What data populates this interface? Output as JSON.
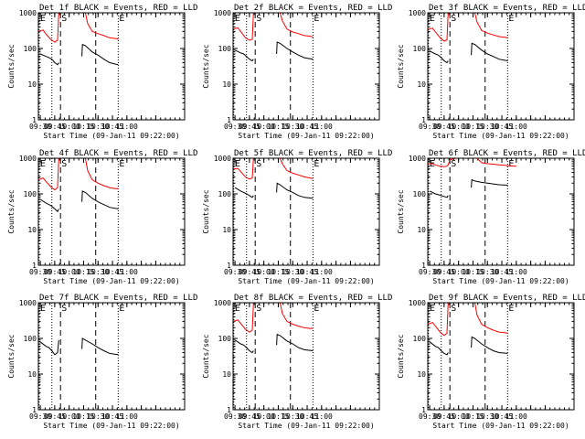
{
  "colors": {
    "background": "#ffffff",
    "events": "#000000",
    "lld": "#ff0000"
  },
  "chart_data": {
    "type": "line",
    "layout": "3x3 grid",
    "ylabel": "Counts/sec",
    "xlabel": "Start Time (09-Jan-11 09:22:00)",
    "y_scale": "log",
    "ylim": [
      1,
      1000
    ],
    "y_ticks": [
      1,
      10,
      100,
      1000
    ],
    "y_tick_labels": [
      "1",
      "10",
      "100",
      "1000"
    ],
    "xlim": [
      -0.033,
      2.5
    ],
    "x_ticks": [
      0,
      0.25,
      0.5,
      0.75,
      1.0,
      1.25,
      1.5,
      1.75,
      2.0
    ],
    "x_tick_labels": [
      "09:30",
      "09:45",
      "10:00",
      "10:15",
      "10:30",
      "10:45",
      "11:00"
    ],
    "x_tick_label_positions": [
      0,
      0.25,
      0.5,
      0.75,
      1.0,
      1.25,
      1.5
    ],
    "x_unit": "hours after 09:30",
    "markers": [
      {
        "label": "E",
        "x": -0.02,
        "style": "dotted"
      },
      {
        "label": "",
        "x": 0.2,
        "style": "dotted"
      },
      {
        "label": "S",
        "x": 0.35,
        "style": "dashed"
      },
      {
        "label": "",
        "x": 0.96,
        "style": "dashed"
      },
      {
        "label": "E",
        "x": 1.35,
        "style": "dotted"
      }
    ],
    "panels": [
      {
        "title": "Det 1f BLACK = Events, RED = LLD",
        "red": [
          [
            -0.033,
            300
          ],
          [
            0.05,
            330
          ],
          [
            0.1,
            250
          ],
          [
            0.18,
            180
          ],
          [
            0.25,
            150
          ],
          [
            0.3,
            170
          ],
          [
            0.32,
            1000
          ],
          [
            0.78,
            1000
          ],
          [
            0.82,
            500
          ],
          [
            0.9,
            300
          ],
          [
            1.0,
            260
          ],
          [
            1.1,
            230
          ],
          [
            1.2,
            200
          ],
          [
            1.3,
            190
          ],
          [
            1.35,
            185
          ]
        ],
        "black": [
          [
            0.0,
            70
          ],
          [
            0.1,
            60
          ],
          [
            0.15,
            55
          ],
          [
            0.2,
            50
          ],
          [
            0.25,
            40
          ],
          [
            0.3,
            35
          ],
          [
            0.32,
            40
          ],
          null,
          [
            0.72,
            60
          ],
          [
            0.73,
            130
          ],
          [
            0.78,
            120
          ],
          [
            0.9,
            80
          ],
          [
            1.0,
            65
          ],
          [
            1.1,
            50
          ],
          [
            1.2,
            40
          ],
          [
            1.35,
            35
          ]
        ]
      },
      {
        "title": "Det 2f BLACK = Events, RED = LLD",
        "red": [
          [
            -0.033,
            350
          ],
          [
            0.05,
            380
          ],
          [
            0.1,
            300
          ],
          [
            0.18,
            200
          ],
          [
            0.25,
            170
          ],
          [
            0.3,
            180
          ],
          [
            0.32,
            1000
          ],
          [
            0.78,
            1000
          ],
          [
            0.82,
            600
          ],
          [
            0.9,
            350
          ],
          [
            1.0,
            290
          ],
          [
            1.1,
            260
          ],
          [
            1.2,
            230
          ],
          [
            1.3,
            220
          ],
          [
            1.35,
            210
          ]
        ],
        "black": [
          [
            0.0,
            90
          ],
          [
            0.1,
            75
          ],
          [
            0.15,
            70
          ],
          [
            0.2,
            60
          ],
          [
            0.25,
            50
          ],
          [
            0.3,
            45
          ],
          [
            0.32,
            50
          ],
          null,
          [
            0.72,
            70
          ],
          [
            0.73,
            150
          ],
          [
            0.78,
            140
          ],
          [
            0.9,
            100
          ],
          [
            1.0,
            80
          ],
          [
            1.1,
            65
          ],
          [
            1.2,
            55
          ],
          [
            1.35,
            50
          ]
        ]
      },
      {
        "title": "Det 3f BLACK = Events, RED = LLD",
        "red": [
          [
            -0.033,
            340
          ],
          [
            0.05,
            370
          ],
          [
            0.1,
            290
          ],
          [
            0.18,
            200
          ],
          [
            0.25,
            160
          ],
          [
            0.3,
            175
          ],
          [
            0.32,
            1000
          ],
          [
            0.78,
            1000
          ],
          [
            0.82,
            550
          ],
          [
            0.9,
            320
          ],
          [
            1.0,
            270
          ],
          [
            1.1,
            240
          ],
          [
            1.2,
            215
          ],
          [
            1.3,
            205
          ],
          [
            1.35,
            200
          ]
        ],
        "black": [
          [
            0.0,
            85
          ],
          [
            0.1,
            70
          ],
          [
            0.15,
            65
          ],
          [
            0.2,
            55
          ],
          [
            0.25,
            45
          ],
          [
            0.3,
            40
          ],
          [
            0.32,
            45
          ],
          null,
          [
            0.72,
            65
          ],
          [
            0.73,
            140
          ],
          [
            0.78,
            130
          ],
          [
            0.9,
            90
          ],
          [
            1.0,
            70
          ],
          [
            1.1,
            60
          ],
          [
            1.2,
            50
          ],
          [
            1.35,
            45
          ]
        ]
      },
      {
        "title": "Det 4f BLACK = Events, RED = LLD",
        "red": [
          [
            -0.033,
            250
          ],
          [
            0.05,
            280
          ],
          [
            0.1,
            220
          ],
          [
            0.18,
            160
          ],
          [
            0.25,
            130
          ],
          [
            0.3,
            150
          ],
          [
            0.32,
            1000
          ],
          [
            0.78,
            1000
          ],
          [
            0.82,
            450
          ],
          [
            0.9,
            250
          ],
          [
            1.0,
            200
          ],
          [
            1.1,
            170
          ],
          [
            1.2,
            150
          ],
          [
            1.3,
            140
          ],
          [
            1.35,
            140
          ]
        ],
        "black": [
          [
            0.0,
            70
          ],
          [
            0.1,
            55
          ],
          [
            0.15,
            50
          ],
          [
            0.2,
            45
          ],
          [
            0.25,
            38
          ],
          [
            0.3,
            32
          ],
          [
            0.32,
            38
          ],
          null,
          [
            0.72,
            60
          ],
          [
            0.73,
            120
          ],
          [
            0.78,
            110
          ],
          [
            0.9,
            75
          ],
          [
            1.0,
            60
          ],
          [
            1.1,
            50
          ],
          [
            1.2,
            42
          ],
          [
            1.35,
            38
          ]
        ]
      },
      {
        "title": "Det 5f BLACK = Events, RED = LLD",
        "red": [
          [
            -0.033,
            500
          ],
          [
            0.05,
            520
          ],
          [
            0.1,
            420
          ],
          [
            0.18,
            300
          ],
          [
            0.25,
            260
          ],
          [
            0.3,
            280
          ],
          [
            0.32,
            1000
          ],
          [
            0.78,
            1000
          ],
          [
            0.82,
            700
          ],
          [
            0.9,
            450
          ],
          [
            1.0,
            380
          ],
          [
            1.1,
            340
          ],
          [
            1.2,
            300
          ],
          [
            1.3,
            280
          ],
          [
            1.35,
            270
          ]
        ],
        "black": [
          [
            0.0,
            150
          ],
          [
            0.1,
            120
          ],
          [
            0.15,
            110
          ],
          [
            0.2,
            100
          ],
          [
            0.25,
            90
          ],
          [
            0.3,
            80
          ],
          [
            0.32,
            90
          ],
          null,
          [
            0.72,
            110
          ],
          [
            0.73,
            200
          ],
          [
            0.78,
            180
          ],
          [
            0.9,
            130
          ],
          [
            1.0,
            110
          ],
          [
            1.1,
            90
          ],
          [
            1.2,
            80
          ],
          [
            1.35,
            75
          ]
        ]
      },
      {
        "title": "Det 6f BLACK = Events, RED = LLD",
        "red": [
          [
            -0.033,
            700
          ],
          [
            0.05,
            700
          ],
          [
            0.1,
            650
          ],
          [
            0.18,
            600
          ],
          [
            0.25,
            580
          ],
          [
            0.3,
            600
          ],
          [
            0.32,
            650
          ],
          [
            0.35,
            900
          ],
          [
            0.45,
            2000
          ],
          [
            0.6,
            2500
          ],
          [
            0.75,
            1800
          ],
          [
            0.82,
            1000
          ],
          [
            0.9,
            750
          ],
          [
            1.0,
            700
          ],
          [
            1.1,
            680
          ],
          [
            1.2,
            650
          ],
          [
            1.3,
            630
          ],
          [
            1.35,
            620
          ],
          [
            1.5,
            600
          ]
        ],
        "black": [
          [
            0.0,
            120
          ],
          [
            0.1,
            100
          ],
          [
            0.15,
            95
          ],
          [
            0.2,
            90
          ],
          [
            0.25,
            85
          ],
          [
            0.3,
            80
          ],
          [
            0.32,
            90
          ],
          null,
          [
            0.72,
            150
          ],
          [
            0.73,
            250
          ],
          [
            0.78,
            230
          ],
          [
            0.9,
            210
          ],
          [
            1.0,
            200
          ],
          [
            1.1,
            190
          ],
          [
            1.2,
            180
          ],
          [
            1.35,
            175
          ]
        ]
      },
      {
        "title": "Det 7f BLACK = Events, RED = LLD",
        "red": [],
        "black": [
          [
            0.0,
            80
          ],
          [
            0.1,
            60
          ],
          [
            0.15,
            55
          ],
          [
            0.2,
            45
          ],
          [
            0.25,
            35
          ],
          [
            0.3,
            40
          ],
          [
            0.32,
            90
          ],
          null,
          [
            0.72,
            50
          ],
          [
            0.73,
            100
          ],
          [
            0.78,
            90
          ],
          [
            0.9,
            70
          ],
          [
            1.0,
            55
          ],
          [
            1.1,
            45
          ],
          [
            1.2,
            38
          ],
          [
            1.35,
            35
          ]
        ]
      },
      {
        "title": "Det 8f BLACK = Events, RED = LLD",
        "red": [
          [
            -0.033,
            300
          ],
          [
            0.05,
            330
          ],
          [
            0.1,
            260
          ],
          [
            0.18,
            180
          ],
          [
            0.25,
            150
          ],
          [
            0.3,
            170
          ],
          [
            0.32,
            1000
          ],
          [
            0.78,
            1000
          ],
          [
            0.82,
            500
          ],
          [
            0.9,
            300
          ],
          [
            1.0,
            250
          ],
          [
            1.1,
            220
          ],
          [
            1.2,
            200
          ],
          [
            1.3,
            190
          ],
          [
            1.35,
            190
          ]
        ],
        "black": [
          [
            0.0,
            90
          ],
          [
            0.1,
            70
          ],
          [
            0.15,
            65
          ],
          [
            0.2,
            55
          ],
          [
            0.25,
            45
          ],
          [
            0.3,
            40
          ],
          [
            0.32,
            45
          ],
          null,
          [
            0.72,
            65
          ],
          [
            0.73,
            130
          ],
          [
            0.78,
            120
          ],
          [
            0.9,
            85
          ],
          [
            1.0,
            70
          ],
          [
            1.1,
            55
          ],
          [
            1.2,
            48
          ],
          [
            1.35,
            45
          ]
        ]
      },
      {
        "title": "Det 9f BLACK = Events, RED = LLD",
        "red": [
          [
            -0.033,
            250
          ],
          [
            0.05,
            280
          ],
          [
            0.1,
            220
          ],
          [
            0.18,
            150
          ],
          [
            0.25,
            120
          ],
          [
            0.3,
            140
          ],
          [
            0.32,
            1000
          ],
          [
            0.78,
            1000
          ],
          [
            0.82,
            450
          ],
          [
            0.9,
            250
          ],
          [
            1.0,
            200
          ],
          [
            1.1,
            170
          ],
          [
            1.2,
            150
          ],
          [
            1.3,
            145
          ],
          [
            1.35,
            140
          ]
        ],
        "black": [
          [
            0.0,
            80
          ],
          [
            0.1,
            60
          ],
          [
            0.15,
            55
          ],
          [
            0.2,
            45
          ],
          [
            0.25,
            38
          ],
          [
            0.3,
            35
          ],
          [
            0.32,
            40
          ],
          null,
          [
            0.72,
            55
          ],
          [
            0.73,
            110
          ],
          [
            0.78,
            100
          ],
          [
            0.9,
            70
          ],
          [
            1.0,
            55
          ],
          [
            1.1,
            45
          ],
          [
            1.2,
            40
          ],
          [
            1.35,
            38
          ]
        ]
      }
    ]
  }
}
